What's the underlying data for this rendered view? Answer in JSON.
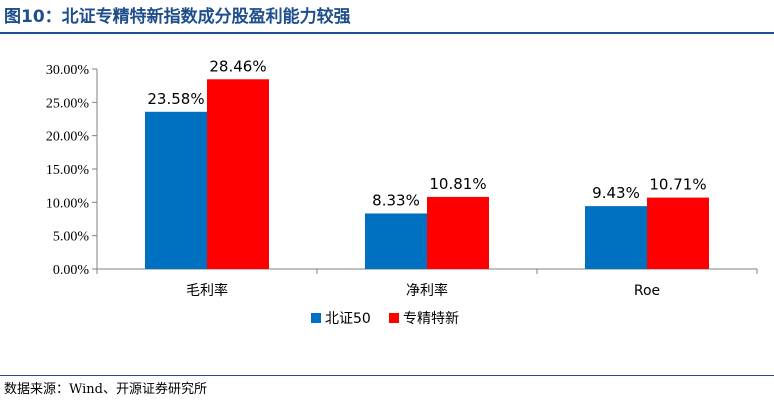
{
  "figure": {
    "title": "图10：北证专精特新指数成分股盈利能力较强",
    "source": "数据来源：Wind、开源证券研究所"
  },
  "colors": {
    "series_1": "#0070c0",
    "series_2": "#ff0000",
    "title": "#1f4e8c",
    "axis": "#808080"
  },
  "chart_data": {
    "type": "bar",
    "title": "",
    "xlabel": "",
    "ylabel": "",
    "categories": [
      "毛利率",
      "净利率",
      "Roe"
    ],
    "series": [
      {
        "name": "北证50",
        "values": [
          23.58,
          8.33,
          9.43
        ],
        "labels": [
          "23.58%",
          "8.33%",
          "9.43%"
        ]
      },
      {
        "name": "专精特新",
        "values": [
          28.46,
          10.81,
          10.71
        ],
        "labels": [
          "28.46%",
          "10.81%",
          "10.71%"
        ]
      }
    ],
    "ylim": [
      0,
      30
    ],
    "yticks": [
      0,
      5,
      10,
      15,
      20,
      25,
      30
    ],
    "ytick_labels": [
      "0.00%",
      "5.00%",
      "10.00%",
      "15.00%",
      "20.00%",
      "25.00%",
      "30.00%"
    ],
    "grid": false,
    "legend_position": "bottom-center",
    "unit": "%"
  }
}
